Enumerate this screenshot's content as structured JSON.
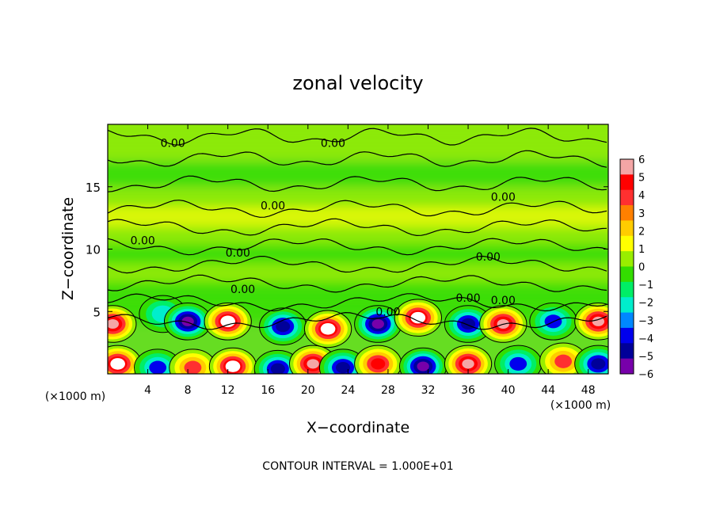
{
  "chart_data": {
    "type": "heatmap",
    "title": "zonal velocity",
    "xlabel": "X−coordinate",
    "ylabel": "Z−coordinate",
    "x_unit_left": "(×1000 m)",
    "x_unit_right": "(×1000 m)",
    "footer": "CONTOUR INTERVAL = 1.000E+01",
    "xlim": [
      0,
      50
    ],
    "ylim": [
      0,
      20
    ],
    "x_ticks": [
      4,
      8,
      12,
      16,
      20,
      24,
      28,
      32,
      36,
      40,
      44,
      48
    ],
    "y_ticks": [
      5,
      10,
      15
    ],
    "colorbar": {
      "min": -6,
      "max": 6,
      "ticks": [
        6,
        5,
        4,
        3,
        2,
        1,
        0,
        -1,
        -2,
        -3,
        -4,
        -5,
        -6
      ],
      "colors": [
        "#f4a6a6",
        "#ff0000",
        "#ff3030",
        "#ff8000",
        "#ffcc00",
        "#ffff00",
        "#99ee00",
        "#33dd00",
        "#00ee66",
        "#00eecc",
        "#0088ff",
        "#0000ee",
        "#000099",
        "#7700aa"
      ]
    },
    "contour_labels": [
      {
        "text": "0.00",
        "x": 6.5,
        "z": 18.5
      },
      {
        "text": "0.00",
        "x": 22.5,
        "z": 18.5
      },
      {
        "text": "0.00",
        "x": 16.5,
        "z": 13.5
      },
      {
        "text": "0.00",
        "x": 39.5,
        "z": 14.2
      },
      {
        "text": "0.00",
        "x": 3.5,
        "z": 10.7
      },
      {
        "text": "0.00",
        "x": 13.0,
        "z": 9.7
      },
      {
        "text": "0.00",
        "x": 13.5,
        "z": 6.8
      },
      {
        "text": "0.00",
        "x": 38.0,
        "z": 9.4
      },
      {
        "text": "0.00",
        "x": 36.0,
        "z": 6.1
      },
      {
        "text": "0.00",
        "x": 39.5,
        "z": 5.9
      },
      {
        "text": "0.00",
        "x": 28.0,
        "z": 5.0
      }
    ],
    "bands": [
      {
        "z": 19.8,
        "value": 0.6
      },
      {
        "z": 18.0,
        "value": 0.3
      },
      {
        "z": 16.0,
        "value": -0.4
      },
      {
        "z": 14.0,
        "value": 0.2
      },
      {
        "z": 12.5,
        "value": 1.2
      },
      {
        "z": 11.0,
        "value": 0.4
      },
      {
        "z": 9.5,
        "value": -0.5
      },
      {
        "z": 8.0,
        "value": 0.3
      },
      {
        "z": 6.5,
        "value": -0.3
      },
      {
        "z": 5.0,
        "value": -0.2
      }
    ],
    "cells": [
      {
        "x": 0.5,
        "z": 4.0,
        "value": 5.5
      },
      {
        "x": 5.5,
        "z": 4.8,
        "value": -2.8
      },
      {
        "x": 8.0,
        "z": 4.2,
        "value": -5.5
      },
      {
        "x": 12.0,
        "z": 4.2,
        "value": 6.0
      },
      {
        "x": 17.5,
        "z": 3.8,
        "value": -5.0
      },
      {
        "x": 22.0,
        "z": 3.6,
        "value": 6.0
      },
      {
        "x": 27.0,
        "z": 4.0,
        "value": -5.5
      },
      {
        "x": 31.0,
        "z": 4.5,
        "value": 6.0
      },
      {
        "x": 36.0,
        "z": 4.0,
        "value": -5.0
      },
      {
        "x": 39.5,
        "z": 4.0,
        "value": 5.5
      },
      {
        "x": 44.5,
        "z": 4.2,
        "value": -3.5
      },
      {
        "x": 49.0,
        "z": 4.2,
        "value": 5.5
      },
      {
        "x": 1.0,
        "z": 0.8,
        "value": 6.0
      },
      {
        "x": 5.0,
        "z": 0.5,
        "value": -3.5
      },
      {
        "x": 8.5,
        "z": 0.5,
        "value": 4.0
      },
      {
        "x": 12.5,
        "z": 0.6,
        "value": 6.0
      },
      {
        "x": 17.0,
        "z": 0.4,
        "value": -4.5
      },
      {
        "x": 20.5,
        "z": 0.8,
        "value": 5.5
      },
      {
        "x": 23.5,
        "z": 0.5,
        "value": -5.0
      },
      {
        "x": 27.0,
        "z": 0.8,
        "value": 4.5
      },
      {
        "x": 31.5,
        "z": 0.6,
        "value": -5.5
      },
      {
        "x": 36.0,
        "z": 0.8,
        "value": 5.5
      },
      {
        "x": 41.0,
        "z": 0.8,
        "value": -4.0
      },
      {
        "x": 45.5,
        "z": 1.0,
        "value": 3.5
      },
      {
        "x": 49.0,
        "z": 0.8,
        "value": -5.0
      }
    ]
  }
}
